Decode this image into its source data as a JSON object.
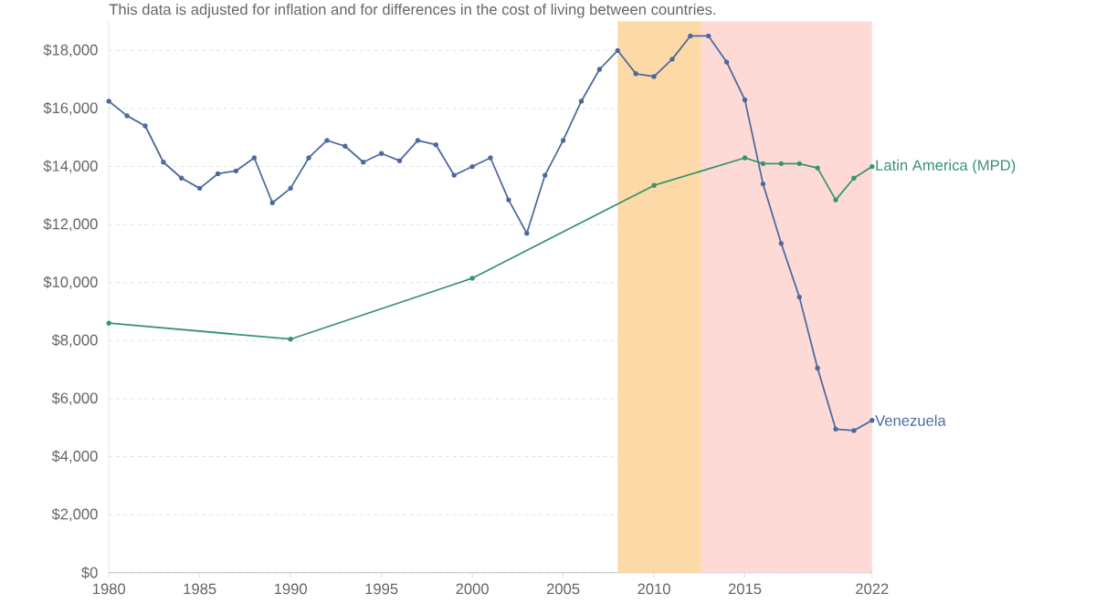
{
  "chart_data": {
    "type": "line",
    "subtitle": "This data is adjusted for inflation and for differences in the cost of living between countries.",
    "xlim": [
      1980,
      2022
    ],
    "xticks": [
      1980,
      1985,
      1990,
      1995,
      2000,
      2005,
      2010,
      2015,
      2022
    ],
    "ylim": [
      0,
      19000
    ],
    "yticks": [
      {
        "value": 0,
        "label": "$0"
      },
      {
        "value": 2000,
        "label": "$2,000"
      },
      {
        "value": 4000,
        "label": "$4,000"
      },
      {
        "value": 6000,
        "label": "$6,000"
      },
      {
        "value": 8000,
        "label": "$8,000"
      },
      {
        "value": 10000,
        "label": "$10,000"
      },
      {
        "value": 12000,
        "label": "$12,000"
      },
      {
        "value": 14000,
        "label": "$14,000"
      },
      {
        "value": 16000,
        "label": "$16,000"
      },
      {
        "value": 18000,
        "label": "$18,000"
      }
    ],
    "grid": "y",
    "legend": false,
    "marker": "circle",
    "line_style": "solid",
    "bands": [
      {
        "axis": "x",
        "from": 2008,
        "to": 2012.6,
        "color": "#fdd9a8"
      },
      {
        "axis": "x",
        "from": 2012.6,
        "to": 2022,
        "color": "#fddad6"
      }
    ],
    "series": [
      {
        "name": "Venezuela",
        "color": "#4c6a9c",
        "x": [
          1980,
          1981,
          1982,
          1983,
          1984,
          1985,
          1986,
          1987,
          1988,
          1989,
          1990,
          1991,
          1992,
          1993,
          1994,
          1995,
          1996,
          1997,
          1998,
          1999,
          2000,
          2001,
          2002,
          2003,
          2004,
          2005,
          2006,
          2007,
          2008,
          2009,
          2010,
          2011,
          2012,
          2013,
          2014,
          2015,
          2016,
          2017,
          2018,
          2019,
          2020,
          2021,
          2022
        ],
        "values": [
          16250,
          15750,
          15400,
          14150,
          13600,
          13250,
          13750,
          13850,
          14300,
          12750,
          13250,
          14300,
          14900,
          14700,
          14150,
          14450,
          14200,
          14900,
          14750,
          13700,
          14000,
          14300,
          12850,
          11700,
          13700,
          14900,
          16250,
          17350,
          18000,
          17200,
          17100,
          17700,
          18500,
          18500,
          17600,
          16300,
          13400,
          11350,
          9500,
          7050,
          4950,
          4900,
          5250
        ]
      },
      {
        "name": "Latin America (MPD)",
        "color": "#37946e",
        "x": [
          1980,
          1990,
          2000,
          2010,
          2015,
          2016,
          2017,
          2018,
          2019,
          2020,
          2021,
          2022
        ],
        "values": [
          8600,
          8050,
          10150,
          13350,
          14300,
          14100,
          14100,
          14100,
          13950,
          12850,
          13600,
          14000
        ]
      }
    ]
  }
}
